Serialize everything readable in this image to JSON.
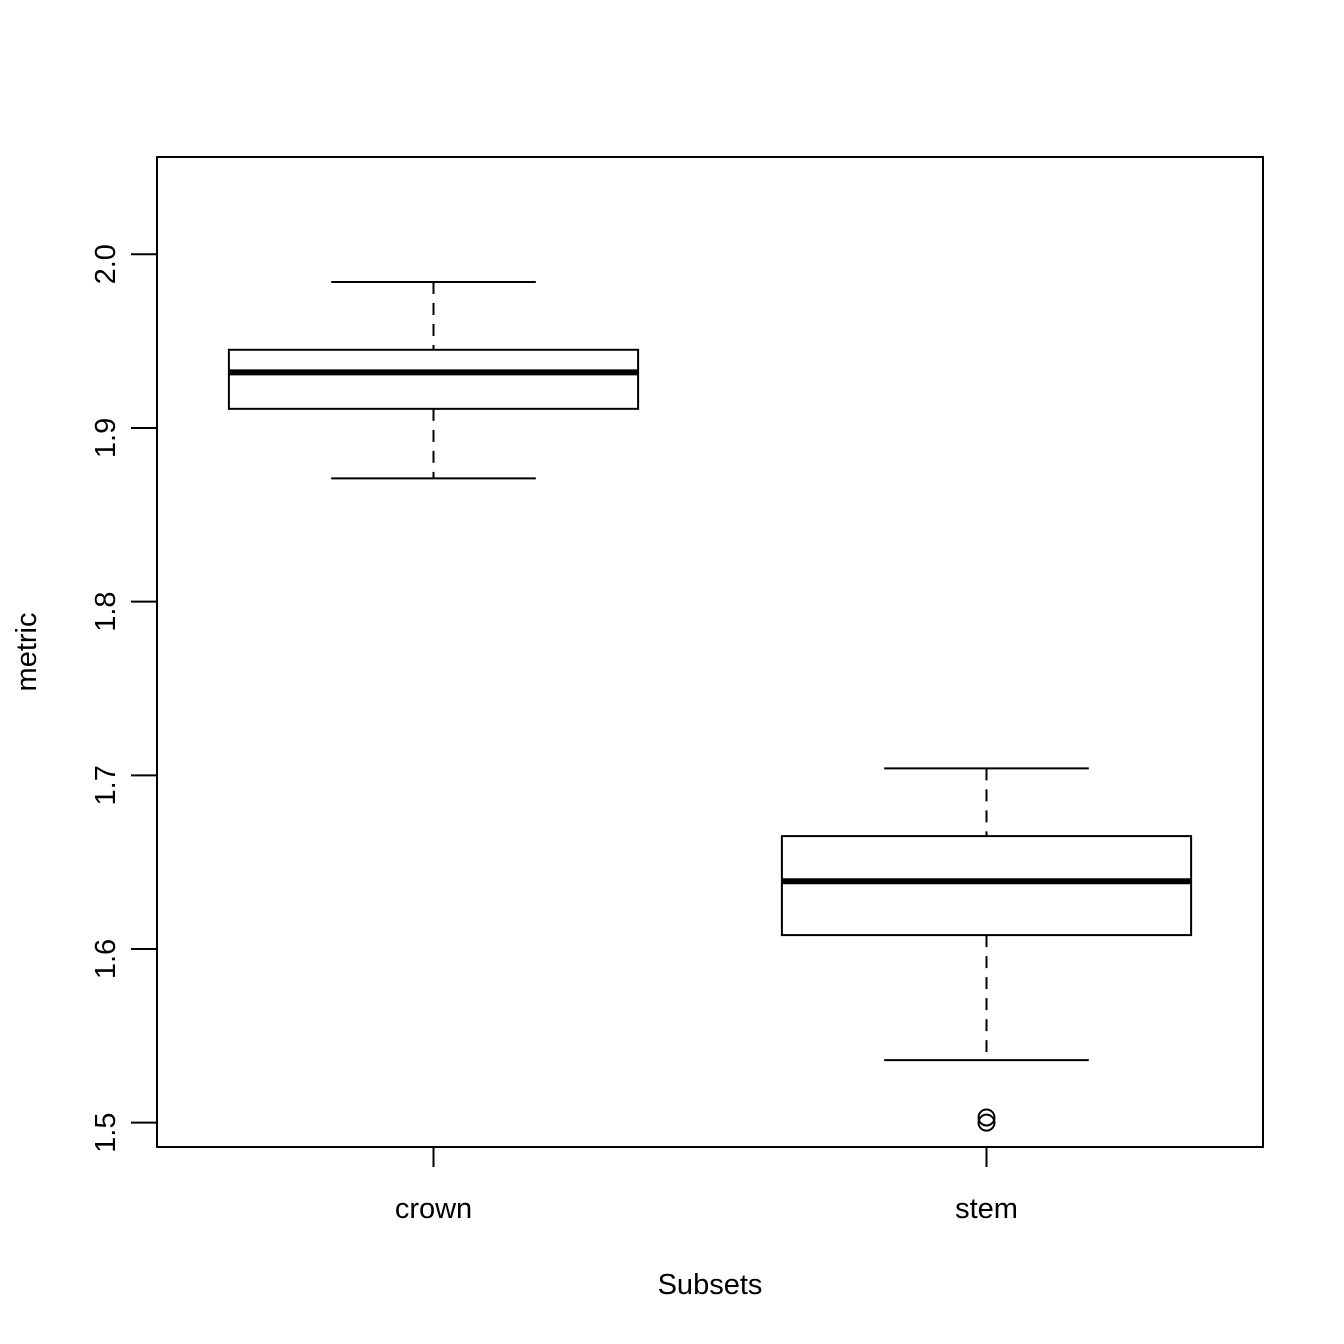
{
  "chart_data": {
    "type": "boxplot",
    "x_label": "Subsets",
    "y_label": "metric",
    "categories": [
      "crown",
      "stem"
    ],
    "boxes": [
      {
        "whisker_low": 1.871,
        "q1": 1.911,
        "median": 1.932,
        "q3": 1.945,
        "whisker_high": 1.984,
        "outliers": []
      },
      {
        "whisker_low": 1.536,
        "q1": 1.608,
        "median": 1.639,
        "q3": 1.665,
        "whisker_high": 1.704,
        "outliers": [
          1.503,
          1.5
        ]
      }
    ],
    "color": "#000000",
    "ylim": [
      1.486,
      2.056
    ],
    "yticks": [
      1.5,
      1.6,
      1.7,
      1.8,
      1.9,
      {
        "value": 2,
        "label": "2.0"
      }
    ]
  }
}
